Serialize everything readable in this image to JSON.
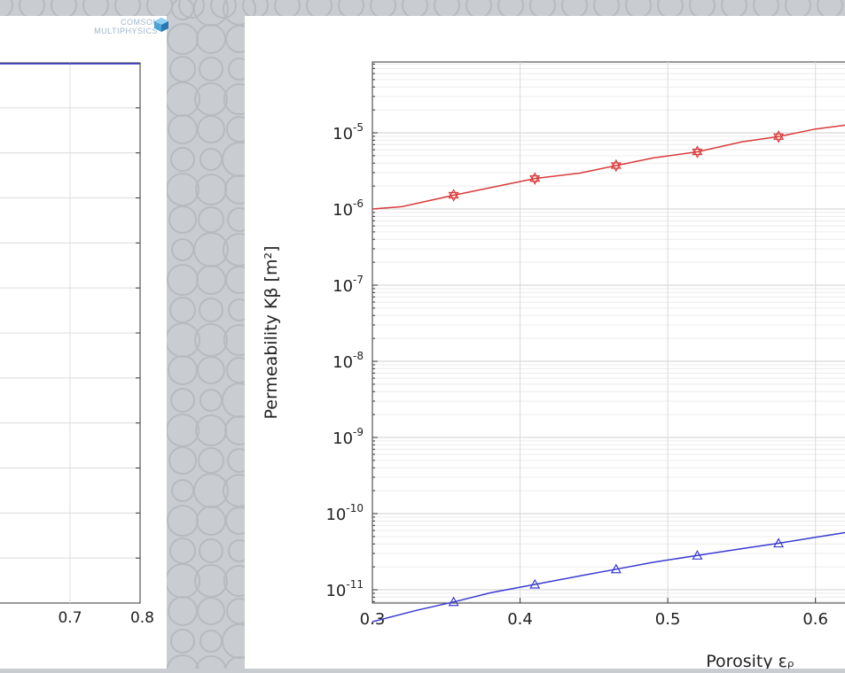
{
  "watermark": {
    "line1": "COMSOL",
    "line2": "MULTIPHYSICS"
  },
  "colors": {
    "red_series": "#d93a3a",
    "blue_series": "#3a3ad0",
    "grid": "#dcdcdc",
    "background": "#c9ccd0"
  },
  "chart_data": [
    {
      "type": "line",
      "note_visible": "partially cropped chart",
      "x_ticks": [
        "0.7",
        "0.8"
      ],
      "series": [
        {
          "x": [
            0.6,
            0.8
          ],
          "y": [
            null,
            null
          ]
        }
      ]
    },
    {
      "type": "line",
      "title": "",
      "xlabel": "Porosity εᵨ",
      "ylabel": "Permeability Kβ [m²]",
      "x_ticks": [
        "0.3",
        "0.4",
        "0.5",
        "0.6"
      ],
      "y_ticks": [
        {
          "base": "10",
          "exp": "-5"
        },
        {
          "base": "10",
          "exp": "-6"
        },
        {
          "base": "10",
          "exp": "-7"
        },
        {
          "base": "10",
          "exp": "-8"
        },
        {
          "base": "10",
          "exp": "-9"
        },
        {
          "base": "10",
          "exp": "-10"
        },
        {
          "base": "10",
          "exp": "-11"
        }
      ],
      "yscale": "log",
      "xlim": [
        0.3,
        0.62
      ],
      "ylim_log10": [
        -11.4,
        -4.1
      ],
      "grid": true,
      "series": [
        {
          "color": "#d93a3a",
          "marker": "hexagram",
          "x": [
            0.3,
            0.32,
            0.355,
            0.38,
            0.41,
            0.44,
            0.465,
            0.49,
            0.52,
            0.55,
            0.575,
            0.6,
            0.62
          ],
          "y_log10": [
            -6.0,
            -5.97,
            -5.82,
            -5.72,
            -5.6,
            -5.53,
            -5.43,
            -5.33,
            -5.25,
            -5.12,
            -5.05,
            -4.95,
            -4.9
          ],
          "marker_x": [
            0.355,
            0.41,
            0.465,
            0.52,
            0.575
          ],
          "marker_y_log10": [
            -5.82,
            -5.6,
            -5.43,
            -5.25,
            -5.05
          ]
        },
        {
          "color": "#3a3ad0",
          "marker": "triangle",
          "x": [
            0.3,
            0.33,
            0.355,
            0.38,
            0.41,
            0.44,
            0.465,
            0.49,
            0.52,
            0.55,
            0.575,
            0.6,
            0.62
          ],
          "y_log10": [
            -11.42,
            -11.27,
            -11.16,
            -11.04,
            -10.93,
            -10.82,
            -10.73,
            -10.64,
            -10.55,
            -10.46,
            -10.39,
            -10.31,
            -10.25
          ],
          "marker_x": [
            0.355,
            0.41,
            0.465,
            0.52,
            0.575
          ],
          "marker_y_log10": [
            -11.16,
            -10.93,
            -10.73,
            -10.55,
            -10.39
          ]
        }
      ]
    }
  ]
}
